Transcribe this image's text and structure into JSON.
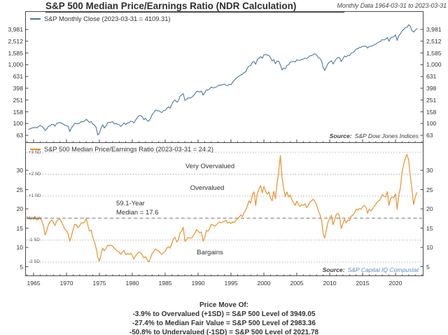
{
  "header": {
    "title": "S&P 500 Median Price/Earnings Ratio (NDR Calculation)",
    "date_note": "Monthly Data 1964-03-31 to 2023-03-31"
  },
  "top_panel": {
    "legend_label": "S&P Monthly Close (2023-03-31 = 4109.31)",
    "source_label": "Source:",
    "source_value": "S&P Dow Jones Indices"
  },
  "bottom_panel": {
    "legend_label": "S&P 500 Median Price/Earnings Ratio (2023-03-31 = 24.2)",
    "source_label": "Source:",
    "source_value": "S&P Capital IQ Compustat",
    "annotations": {
      "very_overvalued": "Very Overvalued",
      "overvalued": "Overvalued",
      "bargains": "Bargains",
      "median_line1": "59.1-Year",
      "median_line2": "Median = 17.6"
    }
  },
  "footer": {
    "line1": "Price Move Of:",
    "line2": "-3.9% to Overvalued (+1SD) = S&P 500 Level of 3949.05",
    "line3": "-27.4% to Median Fair Value = S&P 500 Level of 2983.36",
    "line4": "-50.8% to Undervalued (-1SD) = S&P 500 Level of 2021.78"
  },
  "colors": {
    "sp_line": "#4a76a2",
    "pe_line": "#e8922e",
    "source_blue": "#5b8fc0",
    "axis": "#4a4a4a",
    "sd_dotted": "#999999",
    "median_dash": "#777777"
  },
  "chart_data": [
    {
      "type": "line",
      "name": "S&P Monthly Close",
      "yscale": "log",
      "x_start": 1964.25,
      "x_step": 0.25,
      "x_end": 2023.25,
      "xticks": [
        1965,
        1970,
        1975,
        1980,
        1985,
        1990,
        1995,
        2000,
        2005,
        2010,
        2015,
        2020
      ],
      "yticks": [
        3981,
        2512,
        1585,
        1000,
        631,
        398,
        251,
        158,
        100,
        63
      ],
      "ytick_labels": [
        "3,981",
        "2,512",
        "1,585",
        "1,000",
        "631",
        "398",
        "251",
        "158",
        "100",
        "63"
      ],
      "last_value": 4109.31,
      "values": [
        78.98,
        81.69,
        84.18,
        84.75,
        86.16,
        84.12,
        89.96,
        92.43,
        89.23,
        84.74,
        76.56,
        80.33,
        90.2,
        90.64,
        96.71,
        96.47,
        90.2,
        99.58,
        102.67,
        103.86,
        101.51,
        97.71,
        93.12,
        92.06,
        89.63,
        72.72,
        84.21,
        92.15,
        100.31,
        99.7,
        98.34,
        102.09,
        107.2,
        107.14,
        110.55,
        118.05,
        111.52,
        104.26,
        108.43,
        97.55,
        93.98,
        86.0,
        63.54,
        68.56,
        83.36,
        95.19,
        83.87,
        90.19,
        102.77,
        104.28,
        105.24,
        107.46,
        98.42,
        100.48,
        96.53,
        95.1,
        89.21,
        95.53,
        102.54,
        96.11,
        101.59,
        102.91,
        109.32,
        107.94,
        102.09,
        114.24,
        125.46,
        135.76,
        136.0,
        131.21,
        116.18,
        122.55,
        111.96,
        109.61,
        120.42,
        140.64,
        152.96,
        168.11,
        166.07,
        164.93,
        159.18,
        153.18,
        166.1,
        167.24,
        180.66,
        191.85,
        182.08,
        211.28,
        238.9,
        250.84,
        231.32,
        242.17,
        291.7,
        304.0,
        321.83,
        247.08,
        258.89,
        273.5,
        271.91,
        277.72,
        294.87,
        317.98,
        349.15,
        353.4,
        339.94,
        358.02,
        306.05,
        330.22,
        375.22,
        371.16,
        387.86,
        417.09,
        403.69,
        408.14,
        417.8,
        435.71,
        451.67,
        450.53,
        458.93,
        466.45,
        445.77,
        444.27,
        462.69,
        459.27,
        500.71,
        544.75,
        584.41,
        615.93,
        645.5,
        670.63,
        687.31,
        740.74,
        757.12,
        885.14,
        947.28,
        970.43,
        1101.75,
        1133.84,
        1017.01,
        1229.23,
        1286.37,
        1372.71,
        1282.71,
        1469.25,
        1498.58,
        1454.6,
        1436.51,
        1320.28,
        1160.33,
        1224.38,
        1040.94,
        1148.08,
        1147.39,
        989.82,
        815.28,
        879.82,
        848.18,
        974.5,
        995.97,
        1111.92,
        1126.21,
        1140.84,
        1114.58,
        1211.92,
        1180.59,
        1191.33,
        1228.81,
        1248.29,
        1294.83,
        1270.2,
        1335.85,
        1418.3,
        1420.86,
        1503.35,
        1526.75,
        1468.36,
        1322.7,
        1280.0,
        1166.36,
        903.25,
        797.87,
        919.32,
        1057.08,
        1115.1,
        1169.43,
        1030.71,
        1141.2,
        1257.64,
        1325.83,
        1320.64,
        1131.42,
        1257.6,
        1408.47,
        1362.16,
        1440.67,
        1426.19,
        1569.19,
        1606.28,
        1681.55,
        1848.36,
        1872.34,
        1960.23,
        1972.29,
        2058.9,
        2067.89,
        2063.11,
        1920.03,
        2043.94,
        2059.74,
        2098.86,
        2168.27,
        2238.83,
        2362.72,
        2423.41,
        2519.36,
        2673.61,
        2640.87,
        2718.37,
        2913.98,
        2506.85,
        2834.4,
        2941.76,
        2976.74,
        3230.78,
        2584.59,
        3100.29,
        3363.0,
        3756.07,
        3972.89,
        4297.5,
        4307.54,
        4766.18,
        4530.41,
        3785.38,
        3585.62,
        3839.5,
        4109.31
      ]
    },
    {
      "type": "line",
      "name": "S&P 500 Median Price/Earnings Ratio",
      "yscale": "linear",
      "x_start": 1964.25,
      "x_step": 0.25,
      "x_end": 2023.25,
      "yticks": [
        30,
        25,
        20,
        15,
        10,
        5
      ],
      "ytick_labels": [
        "30",
        "25",
        "20",
        "15",
        "10",
        "5"
      ],
      "median": 17.6,
      "std_dev": 5.7,
      "sd_lines": {
        "+3 SD": 34.7,
        "+2 SD": 29.0,
        "+1 SD": 23.3,
        "Median": 17.6,
        "-1 SD": 11.9,
        "-2 SD": 6.2
      },
      "last_value": 24.2,
      "values": [
        17.5,
        17.3,
        17.6,
        17.4,
        17.8,
        17.1,
        17.4,
        17.6,
        16.9,
        15.6,
        13.2,
        14.4,
        15.9,
        16.7,
        17.1,
        16.5,
        15.7,
        16.8,
        17.2,
        17.4,
        16.5,
        15.7,
        14.7,
        14.3,
        13.5,
        11.6,
        13.0,
        14.6,
        16.0,
        15.8,
        15.1,
        15.6,
        16.4,
        16.3,
        16.6,
        17.5,
        15.8,
        14.2,
        14.5,
        12.5,
        11.4,
        9.8,
        7.5,
        6.4,
        8.2,
        9.8,
        9.1,
        9.7,
        10.6,
        10.4,
        10.6,
        10.3,
        9.8,
        9.4,
        9.0,
        8.8,
        8.2,
        8.8,
        9.2,
        8.1,
        8.4,
        8.2,
        8.5,
        7.9,
        7.0,
        7.8,
        8.4,
        8.8,
        8.6,
        8.1,
        7.3,
        7.6,
        6.8,
        6.2,
        7.1,
        8.4,
        8.9,
        9.6,
        9.3,
        9.1,
        8.5,
        8.2,
        8.7,
        9.0,
        9.8,
        10.2,
        9.8,
        11.0,
        12.2,
        12.6,
        11.4,
        12.0,
        13.8,
        14.2,
        15.2,
        11.6,
        12.0,
        12.6,
        12.4,
        12.4,
        13.0,
        13.6,
        14.6,
        14.2,
        13.8,
        14.0,
        11.6,
        12.5,
        14.4,
        14.2,
        14.9,
        16.0,
        15.8,
        15.5,
        15.8,
        16.3,
        16.6,
        16.4,
        16.6,
        16.8,
        17.0,
        16.3,
        16.6,
        16.2,
        16.6,
        16.4,
        17.1,
        17.5,
        17.9,
        18.4,
        18.0,
        19.1,
        19.7,
        20.9,
        22.1,
        21.5,
        23.7,
        24.4,
        20.8,
        23.9,
        25.1,
        26.0,
        24.1,
        25.8,
        24.6,
        23.8,
        24.4,
        22.8,
        22.1,
        24.6,
        22.6,
        26.6,
        29.6,
        33.8,
        28.0,
        25.4,
        23.1,
        24.4,
        23.1,
        23.6,
        22.4,
        21.6,
        20.9,
        22.0,
        21.1,
        20.6,
        21.1,
        20.9,
        21.3,
        20.3,
        20.9,
        21.8,
        22.1,
        22.5,
        21.9,
        21.1,
        19.6,
        18.6,
        17.1,
        13.6,
        12.4,
        14.6,
        16.6,
        17.6,
        18.3,
        15.9,
        17.1,
        18.6,
        18.9,
        18.1,
        14.9,
        16.1,
        17.3,
        16.3,
        17.1,
        16.9,
        18.1,
        18.3,
        18.9,
        19.9,
        19.7,
        20.1,
        19.9,
        20.5,
        20.9,
        20.5,
        18.9,
        19.9,
        19.5,
        19.9,
        20.7,
        21.1,
        21.9,
        22.1,
        22.7,
        23.7,
        23.3,
        23.1,
        24.5,
        20.9,
        22.7,
        23.1,
        22.9,
        23.9,
        19.9,
        23.6,
        25.6,
        29.6,
        31.6,
        33.1,
        34.1,
        32.6,
        28.6,
        25.1,
        21.1,
        23.1,
        24.2
      ]
    }
  ]
}
